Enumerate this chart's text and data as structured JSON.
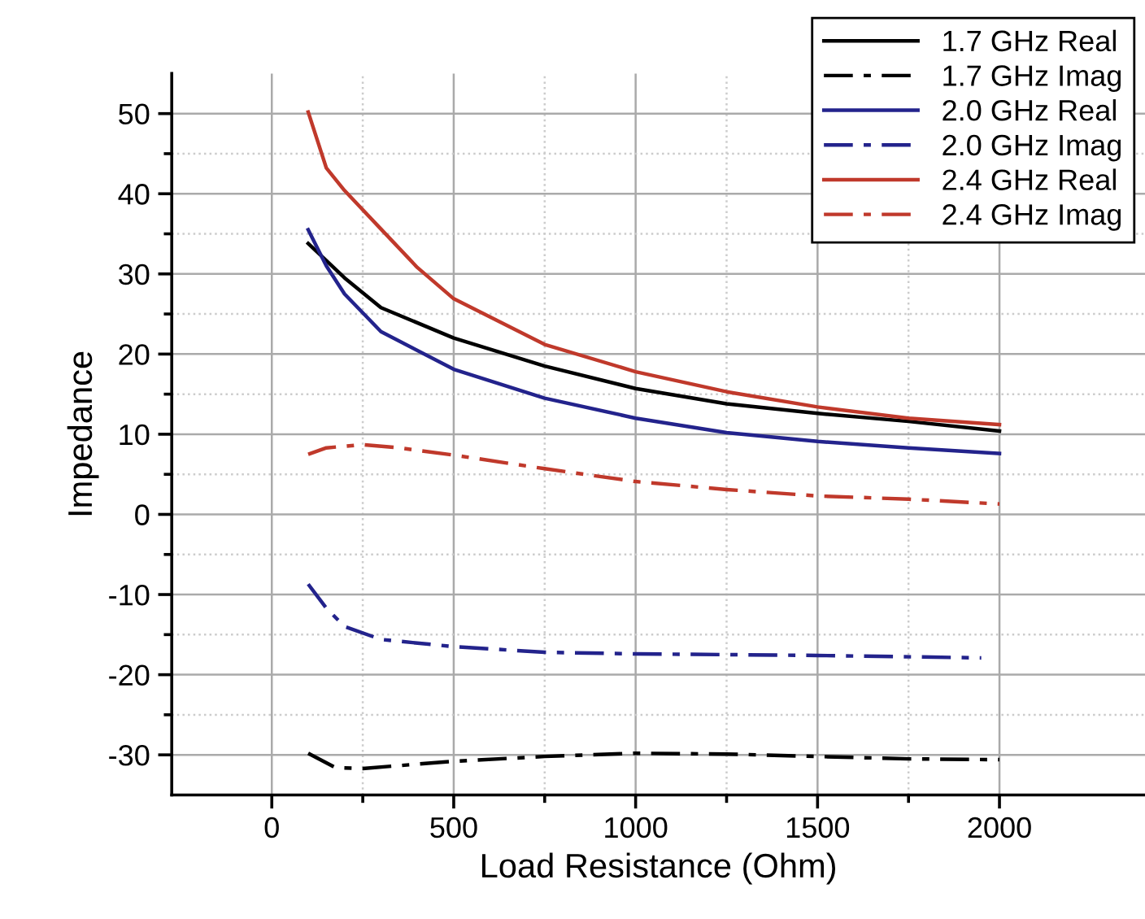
{
  "chart_data": {
    "type": "line",
    "xlabel": "Load Resistance (Ohm)",
    "ylabel": "Impedance",
    "xlim": [
      -275,
      2400
    ],
    "ylim": [
      -35,
      55
    ],
    "xticks": [
      0,
      {
        "value": 250,
        "label": null
      },
      500,
      {
        "value": 750,
        "label": null
      },
      1000,
      {
        "value": 1250,
        "label": null
      },
      1500,
      {
        "value": 1750,
        "label": null
      },
      2000
    ],
    "yticks": [
      -30,
      {
        "value": -25,
        "label": null
      },
      -20,
      {
        "value": -15,
        "label": null
      },
      -10,
      {
        "value": -5,
        "label": null
      },
      0,
      {
        "value": 5,
        "label": null
      },
      10,
      {
        "value": 15,
        "label": null
      },
      20,
      {
        "value": 25,
        "label": null
      },
      30,
      {
        "value": 35,
        "label": null
      },
      40,
      {
        "value": 45,
        "label": null
      },
      50
    ],
    "grid": true,
    "legend": "top right",
    "series": [
      {
        "name": "1.7 GHz Real",
        "color": "#000000",
        "line_style": "solid",
        "x": [
          100,
          200,
          300,
          500,
          750,
          1000,
          1250,
          1500,
          1750,
          2000
        ],
        "values": [
          33.8,
          29.5,
          25.8,
          22.0,
          18.5,
          15.7,
          13.8,
          12.6,
          11.6,
          10.4
        ]
      },
      {
        "name": "1.7 GHz Imag",
        "color": "#000000",
        "line_style": "dashdot",
        "x": [
          100,
          175,
          250,
          500,
          750,
          1000,
          1250,
          1500,
          1750,
          2000
        ],
        "values": [
          -29.8,
          -31.6,
          -31.7,
          -30.8,
          -30.2,
          -29.8,
          -29.9,
          -30.2,
          -30.5,
          -30.6
        ]
      },
      {
        "name": "2.0 GHz Real",
        "color": "#23238c",
        "line_style": "solid",
        "x": [
          100,
          150,
          200,
          300,
          500,
          750,
          1000,
          1250,
          1500,
          1750,
          2000
        ],
        "values": [
          35.5,
          31.0,
          27.5,
          22.8,
          18.1,
          14.5,
          12.0,
          10.2,
          9.1,
          8.3,
          7.6
        ]
      },
      {
        "name": "2.0 GHz Imag",
        "color": "#23238c",
        "line_style": "dashdot",
        "x": [
          100,
          150,
          200,
          300,
          500,
          750,
          1000,
          1500,
          1950
        ],
        "values": [
          -8.7,
          -11.7,
          -14.0,
          -15.6,
          -16.5,
          -17.2,
          -17.4,
          -17.6,
          -17.9
        ]
      },
      {
        "name": "2.4 GHz Real",
        "color": "#c0392b",
        "line_style": "solid",
        "x": [
          100,
          150,
          200,
          300,
          400,
          500,
          750,
          1000,
          1250,
          1500,
          1750,
          2000
        ],
        "values": [
          50.2,
          43.2,
          40.4,
          35.6,
          30.8,
          26.9,
          21.2,
          17.8,
          15.3,
          13.4,
          12.0,
          11.2
        ]
      },
      {
        "name": "2.4 GHz Imag",
        "color": "#c0392b",
        "line_style": "dashdot",
        "x": [
          100,
          150,
          250,
          350,
          500,
          750,
          1000,
          1250,
          1500,
          1750,
          2000
        ],
        "values": [
          7.5,
          8.3,
          8.7,
          8.3,
          7.4,
          5.7,
          4.1,
          3.1,
          2.3,
          1.9,
          1.3
        ]
      }
    ]
  }
}
